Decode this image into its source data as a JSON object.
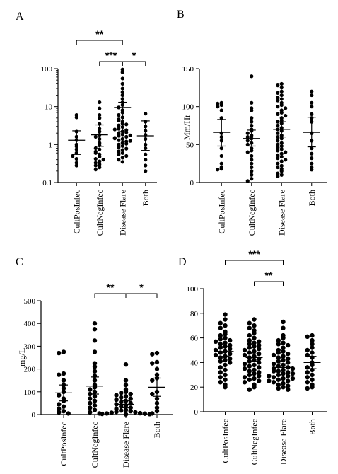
{
  "chart_data": [
    {
      "panel": "A",
      "type": "scatter",
      "ylabel": "",
      "yscale": "log",
      "ylim": [
        0.1,
        100
      ],
      "yticks": [
        "0.1",
        "1",
        "10",
        "100"
      ],
      "categories": [
        "CultPosInfec",
        "CultNegInfec",
        "Disease Flare",
        "Both"
      ],
      "groups": [
        {
          "values": [
            6,
            5.2,
            2.2,
            1.6,
            1.3,
            1.0,
            0.9,
            0.75,
            0.6,
            0.5,
            0.42,
            0.33,
            0.28
          ],
          "mean": 1.3,
          "ci": [
            0.55,
            2.3
          ]
        },
        {
          "values": [
            13,
            9,
            6,
            5,
            3.5,
            2.6,
            2.2,
            1.8,
            1.4,
            1.1,
            0.95,
            0.75,
            0.65,
            0.55,
            0.48,
            0.42,
            0.36,
            0.33,
            0.3,
            0.28,
            0.25,
            0.22,
            0.6,
            0.4,
            1.6,
            0.8
          ],
          "mean": 1.8,
          "ci": [
            0.9,
            3.3
          ]
        },
        {
          "values": [
            95,
            80,
            55,
            40,
            30,
            24,
            20,
            16,
            13,
            11,
            9.5,
            8,
            7,
            6,
            5.2,
            4.6,
            4.0,
            3.6,
            3.2,
            2.9,
            2.6,
            2.4,
            2.2,
            2.0,
            1.85,
            1.7,
            1.6,
            1.5,
            1.4,
            1.3,
            1.2,
            1.1,
            1.0,
            0.92,
            0.85,
            0.78,
            0.72,
            0.66,
            0.6,
            0.55,
            0.5,
            0.45,
            0.4,
            0.35,
            1.45,
            1.75,
            2.1,
            2.5,
            3.4,
            4.3,
            1.25,
            1.05
          ],
          "mean": 9.5,
          "ci": [
            2.2,
            13
          ]
        },
        {
          "values": [
            6.5,
            4,
            3,
            2.3,
            1.8,
            1.4,
            1.0,
            0.8,
            0.55,
            0.4,
            0.28,
            0.2
          ],
          "mean": 1.7,
          "ci": [
            0.7,
            4.2
          ]
        }
      ],
      "annotations": [
        {
          "from": 0,
          "to": 2,
          "label": "**",
          "level": 2
        },
        {
          "from": 1,
          "to": 2,
          "label": "***",
          "level": 1
        },
        {
          "from": 2,
          "to": 3,
          "label": "*",
          "level": 1
        }
      ]
    },
    {
      "panel": "B",
      "type": "scatter",
      "ylabel": "Mm/Hr",
      "yscale": "linear",
      "ylim": [
        0,
        150
      ],
      "yticks": [
        "0",
        "50",
        "100",
        "150"
      ],
      "categories": [
        "CultPosInfec",
        "CultNegInfec",
        "Disease Flare",
        "Both"
      ],
      "groups": [
        {
          "values": [
            105,
            104,
            102,
            100,
            95,
            85,
            65,
            60,
            55,
            45,
            35,
            25,
            20,
            18,
            17
          ],
          "mean": 66,
          "ci": [
            48,
            83
          ]
        },
        {
          "values": [
            140,
            105,
            98,
            95,
            85,
            80,
            75,
            70,
            68,
            65,
            62,
            60,
            58,
            55,
            52,
            50,
            45,
            42,
            40,
            35,
            30,
            25,
            20,
            15,
            10,
            5,
            2
          ],
          "mean": 58,
          "ci": [
            48,
            69
          ]
        },
        {
          "values": [
            130,
            128,
            125,
            120,
            118,
            115,
            112,
            110,
            108,
            105,
            102,
            100,
            98,
            95,
            92,
            90,
            88,
            85,
            82,
            80,
            78,
            75,
            72,
            70,
            68,
            65,
            62,
            60,
            58,
            55,
            52,
            50,
            48,
            46,
            44,
            42,
            40,
            38,
            36,
            34,
            32,
            30,
            28,
            25,
            22,
            20,
            18,
            15,
            12,
            10,
            8
          ],
          "mean": 70,
          "ci": [
            60,
            80
          ]
        },
        {
          "values": [
            120,
            115,
            105,
            100,
            90,
            85,
            80,
            65,
            55,
            45,
            38,
            32,
            25,
            20,
            17
          ],
          "mean": 66,
          "ci": [
            47,
            86
          ]
        }
      ],
      "annotations": []
    },
    {
      "panel": "C",
      "type": "scatter",
      "ylabel": "mg/L",
      "yscale": "linear",
      "ylim": [
        0,
        500
      ],
      "yticks": [
        "0",
        "100",
        "200",
        "300",
        "400",
        "500"
      ],
      "categories": [
        "CultPosInfec",
        "CultNegInfec",
        "Disease Flare",
        "Both"
      ],
      "groups": [
        {
          "values": [
            275,
            270,
            180,
            175,
            150,
            130,
            115,
            100,
            85,
            70,
            60,
            45,
            35,
            25,
            15,
            10,
            5
          ],
          "mean": 95,
          "ci": [
            60,
            130
          ]
        },
        {
          "values": [
            400,
            375,
            325,
            275,
            225,
            210,
            190,
            170,
            150,
            130,
            120,
            110,
            100,
            90,
            80,
            70,
            60,
            50,
            40,
            30,
            20,
            10,
            5
          ],
          "mean": 125,
          "ci": [
            90,
            165
          ]
        },
        {
          "values": [
            220,
            150,
            130,
            110,
            100,
            95,
            90,
            85,
            80,
            75,
            70,
            65,
            60,
            55,
            50,
            45,
            40,
            35,
            30,
            25,
            20,
            18,
            15,
            12,
            10,
            8,
            6,
            5,
            4,
            3,
            2,
            1
          ],
          "mean": 45,
          "ci": [
            30,
            60
          ]
        },
        {
          "values": [
            270,
            265,
            230,
            225,
            200,
            175,
            160,
            150,
            100,
            90,
            70,
            50,
            30,
            15,
            5
          ],
          "mean": 120,
          "ci": [
            80,
            160
          ]
        }
      ],
      "annotations": [
        {
          "from": 1,
          "to": 2,
          "label": "**",
          "level": 1
        },
        {
          "from": 2,
          "to": 3,
          "label": "*",
          "level": 1
        }
      ]
    },
    {
      "panel": "D",
      "type": "scatter",
      "ylabel": "",
      "yscale": "linear",
      "ylim": [
        0,
        100
      ],
      "yticks": [
        "0",
        "20",
        "40",
        "60",
        "80",
        "100"
      ],
      "categories": [
        "CultPosInfec",
        "CultNegInfec",
        "Disease Flare",
        "Both"
      ],
      "groups": [
        {
          "values": [
            79,
            75,
            72,
            70,
            68,
            65,
            63,
            62,
            60,
            59,
            58,
            57,
            56,
            55,
            54,
            53,
            52,
            51,
            50,
            49,
            48,
            47,
            46,
            45,
            44,
            43,
            42,
            41,
            40,
            38,
            36,
            34,
            32,
            30,
            28,
            26,
            24,
            22,
            20
          ],
          "mean": 49,
          "ci": [
            45,
            53
          ]
        },
        {
          "values": [
            75,
            72,
            70,
            68,
            66,
            64,
            62,
            60,
            58,
            57,
            56,
            55,
            54,
            53,
            52,
            51,
            50,
            49,
            48,
            47,
            46,
            45,
            44,
            43,
            42,
            41,
            40,
            39,
            38,
            37,
            36,
            35,
            34,
            33,
            32,
            31,
            30,
            29,
            28,
            27,
            26,
            25,
            24,
            22,
            20,
            18
          ],
          "mean": 44,
          "ci": [
            41,
            47
          ]
        },
        {
          "values": [
            73,
            68,
            62,
            60,
            58,
            56,
            55,
            54,
            52,
            50,
            49,
            48,
            47,
            46,
            45,
            44,
            43,
            42,
            41,
            40,
            39,
            38,
            37,
            36,
            35,
            34,
            33,
            32,
            31,
            30,
            29,
            28,
            27,
            26,
            25,
            24,
            23,
            22,
            21,
            20,
            19,
            18,
            35,
            33,
            31,
            29,
            27,
            25
          ],
          "mean": 36,
          "ci": [
            33,
            39
          ]
        },
        {
          "values": [
            62,
            61,
            58,
            55,
            52,
            50,
            48,
            46,
            44,
            40,
            38,
            36,
            34,
            32,
            30,
            28,
            26,
            24,
            22,
            20,
            19
          ],
          "mean": 40,
          "ci": [
            35,
            45
          ]
        }
      ],
      "annotations": [
        {
          "from": 0,
          "to": 2,
          "label": "***",
          "level": 2
        },
        {
          "from": 1,
          "to": 2,
          "label": "**",
          "level": 1
        }
      ]
    }
  ]
}
